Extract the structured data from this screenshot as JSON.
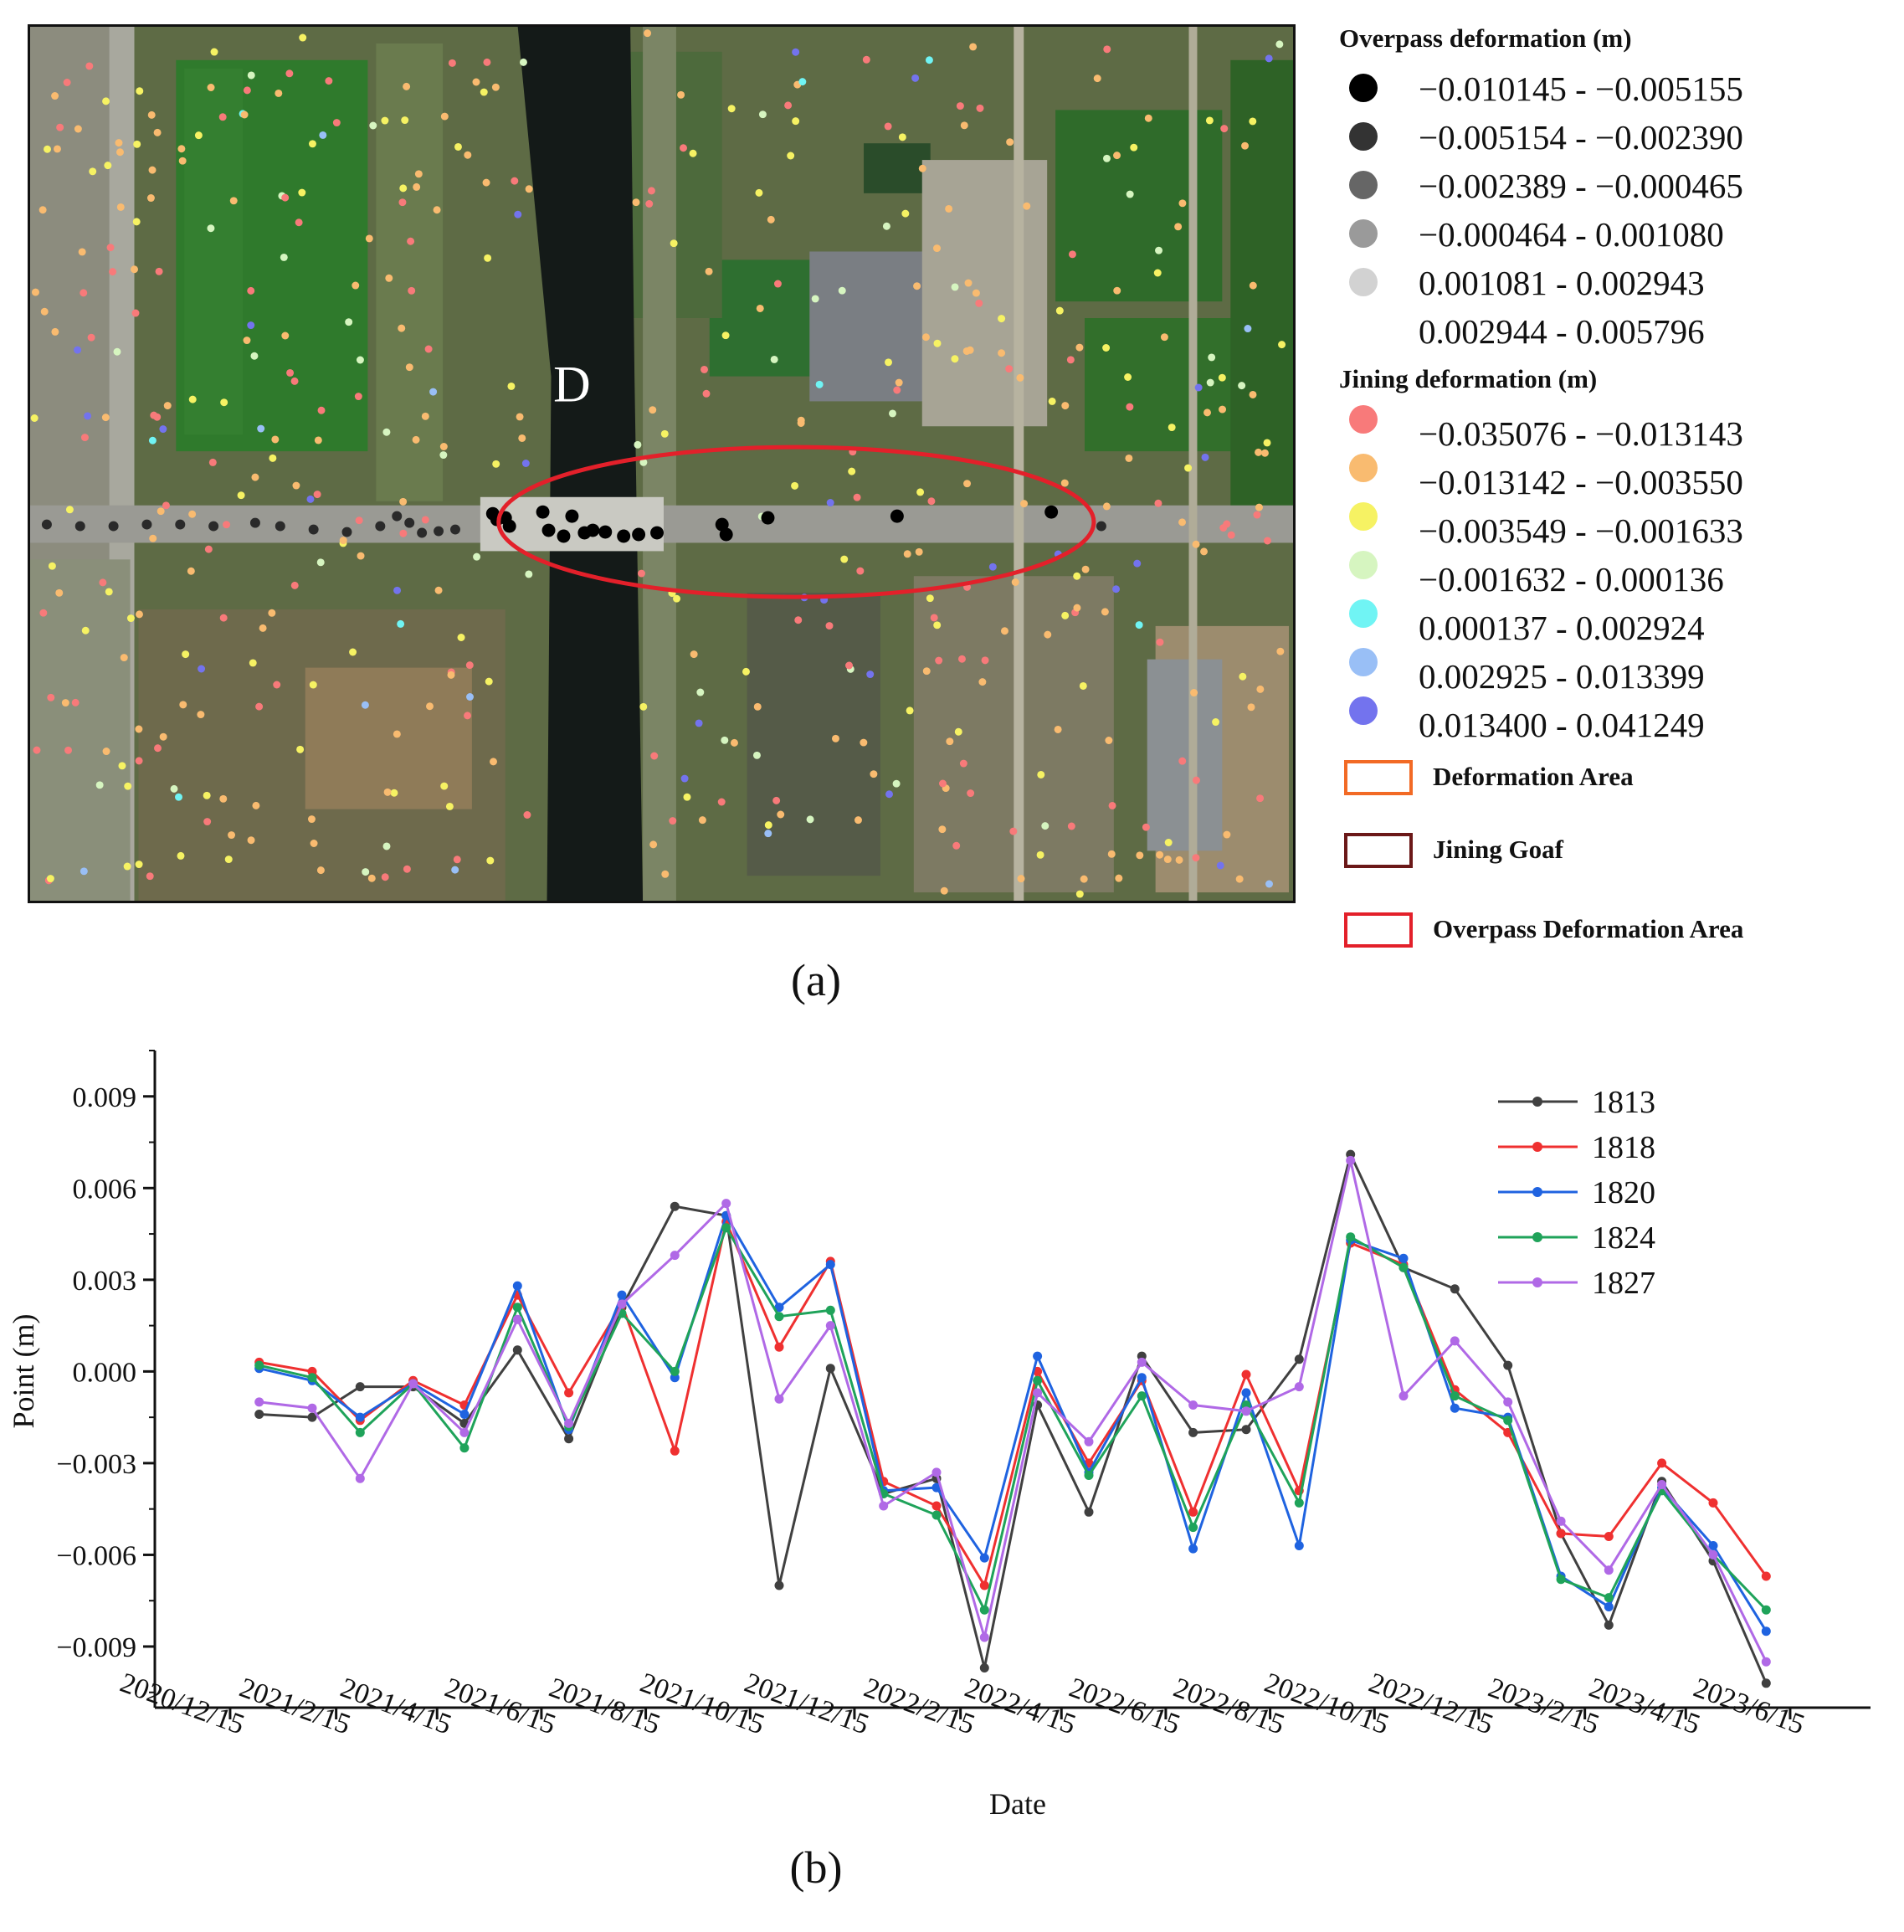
{
  "map": {
    "label_d": "D",
    "colors": {
      "overpass_circle": "#e3202a"
    }
  },
  "legend": {
    "overpass_title": "Overpass deformation (m)",
    "overpass_classes": [
      {
        "range": "−0.010145 - −0.005155",
        "color": "#000000"
      },
      {
        "range": "−0.005154 - −0.002390",
        "color": "#333333"
      },
      {
        "range": "−0.002389 - −0.000465",
        "color": "#666666"
      },
      {
        "range": "−0.000464 - 0.001080",
        "color": "#9a9a9a"
      },
      {
        "range": "0.001081 - 0.002943",
        "color": "#d2d2d2"
      },
      {
        "range": "0.002944 - 0.005796",
        "color": "#ffffff"
      }
    ],
    "jining_title": "Jining deformation (m)",
    "jining_classes": [
      {
        "range": "−0.035076 - −0.013143",
        "color": "#f87a7a"
      },
      {
        "range": "−0.013142 - −0.003550",
        "color": "#f9bb70"
      },
      {
        "range": "−0.003549 - −0.001633",
        "color": "#f6f263"
      },
      {
        "range": "−0.001632 - 0.000136",
        "color": "#d6f5c0"
      },
      {
        "range": "0.000137 - 0.002924",
        "color": "#70f4f4"
      },
      {
        "range": "0.002925 - 0.013399",
        "color": "#99bff6"
      },
      {
        "range": "0.013400 - 0.041249",
        "color": "#7373ee"
      }
    ],
    "boxes": [
      {
        "label": "Deformation Area",
        "color": "#f26a25"
      },
      {
        "label": "Jining Goaf",
        "color": "#6b1818"
      },
      {
        "label": "Overpass Deformation Area",
        "color": "#e3202a"
      }
    ]
  },
  "panel_labels": {
    "a": "(a)",
    "b": "(b)"
  },
  "chart_data": {
    "type": "line",
    "xlabel": "Date",
    "ylabel": "Point (m)",
    "x": [
      "2021/1/1",
      "2021/2/1",
      "2021/3/1",
      "2021/4/1",
      "2021/5/1",
      "2021/6/1",
      "2021/7/1",
      "2021/8/1",
      "2021/9/1",
      "2021/10/1",
      "2021/11/1",
      "2021/12/1",
      "2022/1/1",
      "2022/2/1",
      "2022/3/1",
      "2022/4/1",
      "2022/5/1",
      "2022/6/1",
      "2022/7/1",
      "2022/8/1",
      "2022/9/1",
      "2022/10/1",
      "2022/11/1",
      "2022/12/1",
      "2023/1/1",
      "2023/2/1",
      "2023/3/1",
      "2023/4/1",
      "2023/5/1",
      "2023/6/1",
      "2023/7/1"
    ],
    "x_ticks": [
      "2020/12/15",
      "2021/2/15",
      "2021/4/15",
      "2021/6/15",
      "2021/8/15",
      "2021/10/15",
      "2021/12/15",
      "2022/2/15",
      "2022/4/15",
      "2022/6/15",
      "2022/8/15",
      "2022/10/15",
      "2022/12/15",
      "2023/2/15",
      "2023/4/15",
      "2023/6/15"
    ],
    "x_tick_values": [
      "2020/12/15",
      "2021/2/15",
      "2021/4/15",
      "2021/6/15",
      "2021/8/15",
      "2021/10/15",
      "2021/12/15",
      "2022/2/15",
      "2022/4/15",
      "2022/6/15",
      "2022/8/15",
      "2022/10/15",
      "2022/12/15",
      "2023/2/15",
      "2023/4/15",
      "2023/6/15"
    ],
    "y_ticks": [
      "0.009",
      "0.006",
      "0.003",
      "0.000",
      "−0.003",
      "−0.006",
      "−0.009"
    ],
    "y_tick_values": [
      0.009,
      0.006,
      0.003,
      0.0,
      -0.003,
      -0.006,
      -0.009
    ],
    "xlim": [
      "2020/11/1",
      "2023/8/1"
    ],
    "ylim": [
      -0.011,
      0.0105
    ],
    "grid": false,
    "legend_position": "top-right",
    "series": [
      {
        "name": "1813",
        "color": "#404040",
        "values": [
          -0.0014,
          -0.0015,
          -0.0005,
          -0.0005,
          -0.0017,
          0.0007,
          -0.0022,
          0.0021,
          0.0054,
          0.0051,
          -0.007,
          0.0001,
          -0.004,
          -0.0035,
          -0.0097,
          -0.0011,
          -0.0046,
          0.0005,
          -0.002,
          -0.0019,
          0.0004,
          0.0071,
          0.0034,
          0.0027,
          0.0002,
          -0.0053,
          -0.0083,
          -0.0036,
          -0.0062,
          -0.0102,
          null
        ]
      },
      {
        "name": "1818",
        "color": "#ef3030",
        "values": [
          0.0003,
          0.0,
          -0.0016,
          -0.0003,
          -0.0011,
          0.0025,
          -0.0007,
          0.0022,
          -0.0026,
          0.0049,
          0.0008,
          0.0036,
          -0.0036,
          -0.0044,
          -0.007,
          0.0,
          -0.003,
          -0.0003,
          -0.0046,
          -0.0001,
          -0.0039,
          0.0042,
          0.0035,
          -0.0006,
          -0.002,
          -0.0053,
          -0.0054,
          -0.003,
          -0.0043,
          -0.0067,
          null
        ]
      },
      {
        "name": "1820",
        "color": "#1f63e0",
        "values": [
          0.0001,
          -0.0003,
          -0.0015,
          -0.0004,
          -0.0014,
          0.0028,
          -0.0019,
          0.0025,
          -0.0002,
          0.0051,
          0.0021,
          0.0035,
          -0.0039,
          -0.0038,
          -0.0061,
          0.0005,
          -0.0033,
          -0.0002,
          -0.0058,
          -0.0007,
          -0.0057,
          0.0043,
          0.0037,
          -0.0012,
          -0.0015,
          -0.0067,
          -0.0077,
          -0.0038,
          -0.0057,
          -0.0085,
          null
        ]
      },
      {
        "name": "1824",
        "color": "#1fa35a",
        "values": [
          0.0002,
          -0.0002,
          -0.002,
          -0.0004,
          -0.0025,
          0.0021,
          -0.0018,
          0.0019,
          0.0,
          0.0047,
          0.0018,
          0.002,
          -0.004,
          -0.0047,
          -0.0078,
          -0.0003,
          -0.0034,
          -0.0008,
          -0.0051,
          -0.0011,
          -0.0043,
          0.0044,
          0.0034,
          -0.0008,
          -0.0016,
          -0.0068,
          -0.0074,
          -0.0039,
          -0.006,
          -0.0078,
          null
        ]
      },
      {
        "name": "1827",
        "color": "#b069e6",
        "values": [
          -0.001,
          -0.0012,
          -0.0035,
          -0.0004,
          -0.002,
          0.0017,
          -0.0017,
          0.0022,
          0.0038,
          0.0055,
          -0.0009,
          0.0015,
          -0.0044,
          -0.0033,
          -0.0087,
          -0.0007,
          -0.0023,
          0.0003,
          -0.0011,
          -0.0013,
          -0.0005,
          0.0069,
          -0.0008,
          0.001,
          -0.001,
          -0.0049,
          -0.0065,
          -0.0037,
          -0.006,
          -0.0095,
          null
        ]
      }
    ]
  }
}
